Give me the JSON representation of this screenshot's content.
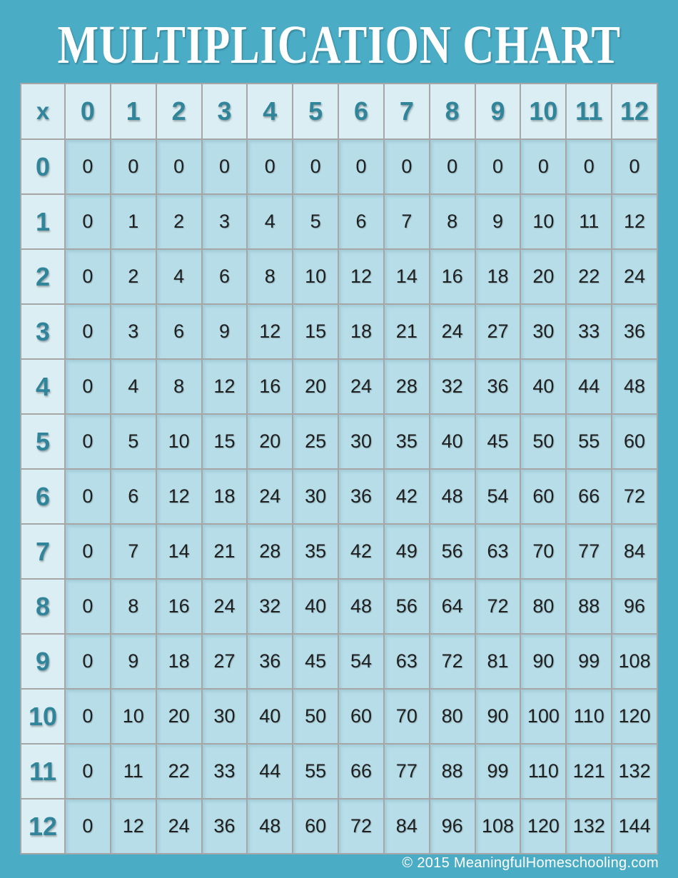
{
  "page": {
    "title": "MULTIPLICATION CHART",
    "footer": "© 2015 MeaningfulHomeschooling.com"
  },
  "colors": {
    "background": "#4BACC6",
    "header_cell_fill": "#DAEEF3",
    "body_cell_fill": "#B6DDE8",
    "header_text": "#31859B",
    "body_text": "#1F1F1F",
    "grid_border": "#A6A6A6",
    "title_text": "#FFFFFF",
    "footer_text": "#FFFFFF"
  },
  "chart_data": {
    "type": "table",
    "title": "MULTIPLICATION CHART",
    "corner_label": "x",
    "column_headers": [
      "0",
      "1",
      "2",
      "3",
      "4",
      "5",
      "6",
      "7",
      "8",
      "9",
      "10",
      "11",
      "12"
    ],
    "row_headers": [
      "0",
      "1",
      "2",
      "3",
      "4",
      "5",
      "6",
      "7",
      "8",
      "9",
      "10",
      "11",
      "12"
    ],
    "rows": [
      [
        0,
        0,
        0,
        0,
        0,
        0,
        0,
        0,
        0,
        0,
        0,
        0,
        0
      ],
      [
        0,
        1,
        2,
        3,
        4,
        5,
        6,
        7,
        8,
        9,
        10,
        11,
        12
      ],
      [
        0,
        2,
        4,
        6,
        8,
        10,
        12,
        14,
        16,
        18,
        20,
        22,
        24
      ],
      [
        0,
        3,
        6,
        9,
        12,
        15,
        18,
        21,
        24,
        27,
        30,
        33,
        36
      ],
      [
        0,
        4,
        8,
        12,
        16,
        20,
        24,
        28,
        32,
        36,
        40,
        44,
        48
      ],
      [
        0,
        5,
        10,
        15,
        20,
        25,
        30,
        35,
        40,
        45,
        50,
        55,
        60
      ],
      [
        0,
        6,
        12,
        18,
        24,
        30,
        36,
        42,
        48,
        54,
        60,
        66,
        72
      ],
      [
        0,
        7,
        14,
        21,
        28,
        35,
        42,
        49,
        56,
        63,
        70,
        77,
        84
      ],
      [
        0,
        8,
        16,
        24,
        32,
        40,
        48,
        56,
        64,
        72,
        80,
        88,
        96
      ],
      [
        0,
        9,
        18,
        27,
        36,
        45,
        54,
        63,
        72,
        81,
        90,
        99,
        108
      ],
      [
        0,
        10,
        20,
        30,
        40,
        50,
        60,
        70,
        80,
        90,
        100,
        110,
        120
      ],
      [
        0,
        11,
        22,
        33,
        44,
        55,
        66,
        77,
        88,
        99,
        110,
        121,
        132
      ],
      [
        0,
        12,
        24,
        36,
        48,
        60,
        72,
        84,
        96,
        108,
        120,
        132,
        144
      ]
    ]
  }
}
